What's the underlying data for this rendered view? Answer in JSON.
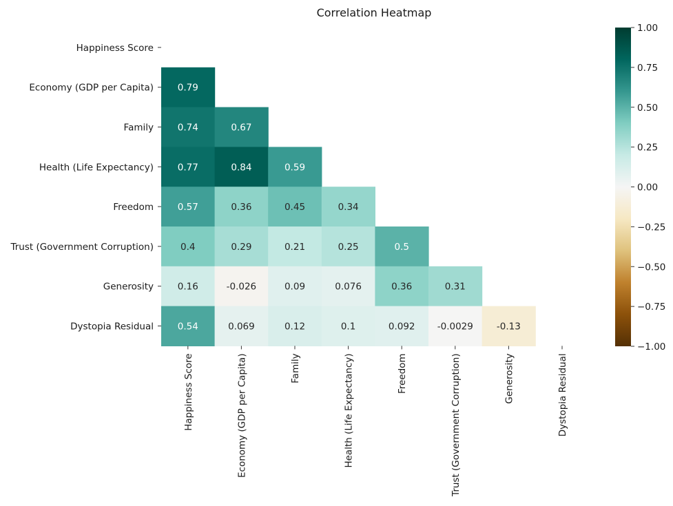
{
  "chart_data": {
    "type": "heatmap",
    "title": "Correlation Heatmap",
    "colormap": "BrBG",
    "mask": "upper triangle including diagonal",
    "variables": [
      "Happiness Score",
      "Economy (GDP per Capita)",
      "Family",
      "Health (Life Expectancy)",
      "Freedom",
      "Trust (Government Corruption)",
      "Generosity",
      "Dystopia Residual"
    ],
    "values": [
      [],
      [
        0.79
      ],
      [
        0.74,
        0.67
      ],
      [
        0.77,
        0.84,
        0.59
      ],
      [
        0.57,
        0.36,
        0.45,
        0.34
      ],
      [
        0.4,
        0.29,
        0.21,
        0.25,
        0.5
      ],
      [
        0.16,
        -0.026,
        0.09,
        0.076,
        0.36,
        0.31
      ],
      [
        0.54,
        0.069,
        0.12,
        0.1,
        0.092,
        -0.0029,
        -0.13
      ]
    ],
    "colorbar": {
      "range": [
        -1.0,
        1.0
      ],
      "ticks": [
        "1.00",
        "0.75",
        "0.50",
        "0.25",
        "0.00",
        "−0.25",
        "−0.50",
        "−0.75",
        "−1.00"
      ]
    }
  }
}
